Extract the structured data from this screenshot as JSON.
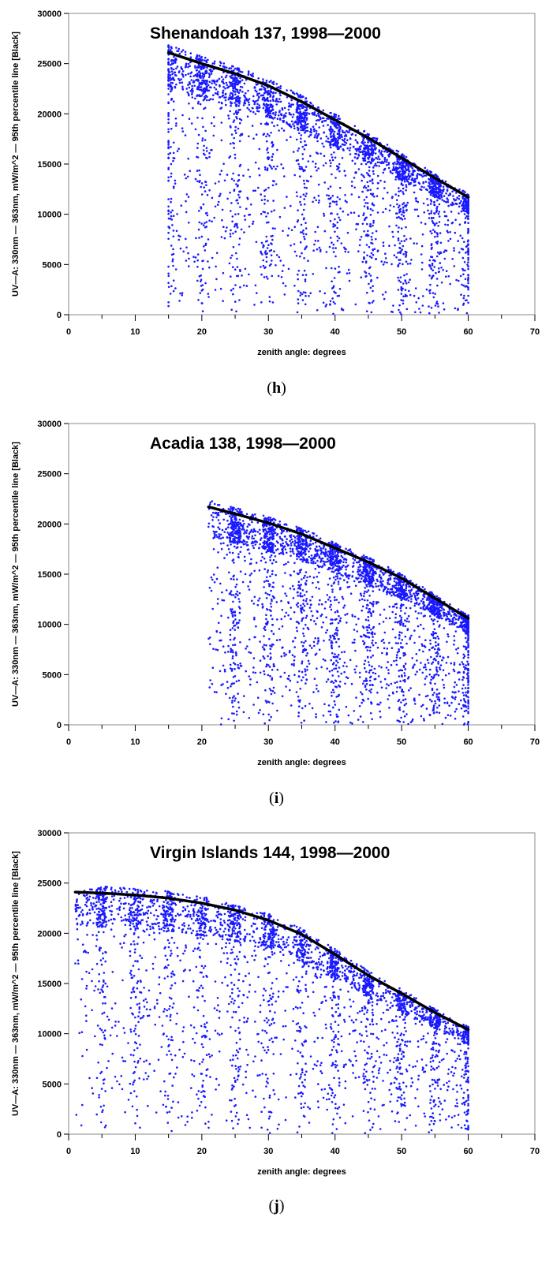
{
  "chart_data": [
    {
      "type": "scatter",
      "label": "(h)",
      "label_letter": "h",
      "title": "Shenandoah 137,  1998—2000",
      "xlabel": "zenith angle: degrees",
      "ylabel": "UV—A: 330nm — 363nm, mW/m^2 — 95th percentile line [Black]",
      "xlim": [
        0,
        70
      ],
      "ylim": [
        0,
        30000
      ],
      "x_ticks": [
        0,
        10,
        20,
        30,
        40,
        50,
        60,
        70
      ],
      "y_ticks": [
        0,
        5000,
        10000,
        15000,
        20000,
        25000,
        30000
      ],
      "x_range": [
        15,
        60
      ],
      "point_color": "#1a1aff",
      "series": [
        {
          "type": "line",
          "color": "#000000",
          "x": [
            15,
            20,
            25,
            30,
            35,
            40,
            45,
            50,
            55,
            60
          ],
          "values": [
            26100,
            25000,
            24000,
            22800,
            21200,
            19400,
            17600,
            15600,
            13600,
            11700
          ]
        }
      ]
    },
    {
      "type": "scatter",
      "label": "(i)",
      "label_letter": "i",
      "title": "Acadia 138,  1998—2000",
      "xlabel": "zenith angle: degrees",
      "ylabel": "UV—A: 330nm — 363nm, mW/m^2 — 95th percentile line [Black]",
      "xlim": [
        0,
        70
      ],
      "ylim": [
        0,
        30000
      ],
      "x_ticks": [
        0,
        10,
        20,
        30,
        40,
        50,
        60,
        70
      ],
      "y_ticks": [
        0,
        5000,
        10000,
        15000,
        20000,
        25000,
        30000
      ],
      "x_range": [
        21,
        60
      ],
      "point_color": "#1a1aff",
      "series": [
        {
          "type": "line",
          "color": "#000000",
          "x": [
            21,
            25,
            30,
            35,
            40,
            45,
            50,
            55,
            60
          ],
          "values": [
            21700,
            21000,
            20100,
            19000,
            17600,
            16200,
            14600,
            12600,
            10600
          ]
        }
      ]
    },
    {
      "type": "scatter",
      "label": "(j)",
      "label_letter": "j",
      "title": "Virgin Islands 144,  1998—2000",
      "xlabel": "zenith angle: degrees",
      "ylabel": "UV—A: 330nm — 363nm, mW/m^2 — 95th percentile line [Black]",
      "xlim": [
        0,
        70
      ],
      "ylim": [
        0,
        30000
      ],
      "x_ticks": [
        0,
        10,
        20,
        30,
        40,
        50,
        60,
        70
      ],
      "y_ticks": [
        0,
        5000,
        10000,
        15000,
        20000,
        25000,
        30000
      ],
      "x_range": [
        1,
        60
      ],
      "point_color": "#1a1aff",
      "series": [
        {
          "type": "line",
          "color": "#000000",
          "x": [
            1,
            5,
            10,
            15,
            20,
            25,
            30,
            35,
            40,
            45,
            50,
            55,
            60
          ],
          "values": [
            24100,
            24000,
            23800,
            23500,
            23000,
            22300,
            21300,
            19900,
            17900,
            15800,
            14000,
            12100,
            10400
          ]
        }
      ]
    }
  ]
}
